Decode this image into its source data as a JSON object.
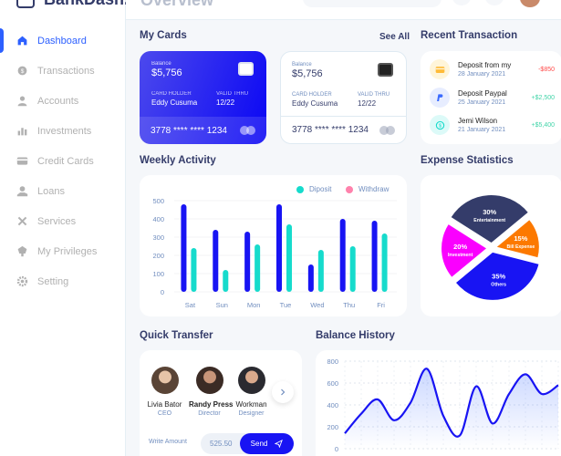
{
  "brand": {
    "name": "BankDash."
  },
  "header": {
    "title": "Overview"
  },
  "sidebar": {
    "items": [
      {
        "label": "Dashboard",
        "icon": "home-icon"
      },
      {
        "label": "Transactions",
        "icon": "transfer-icon"
      },
      {
        "label": "Accounts",
        "icon": "user-icon"
      },
      {
        "label": "Investments",
        "icon": "investment-icon"
      },
      {
        "label": "Credit Cards",
        "icon": "credit-card-icon"
      },
      {
        "label": "Loans",
        "icon": "loan-icon"
      },
      {
        "label": "Services",
        "icon": "service-icon"
      },
      {
        "label": "My Privileges",
        "icon": "privilege-icon"
      },
      {
        "label": "Setting",
        "icon": "gear-icon"
      }
    ]
  },
  "my_cards": {
    "title": "My Cards",
    "see_all": "See All",
    "cards": [
      {
        "balance_label": "Balance",
        "balance": "$5,756",
        "holder_label": "CARD HOLDER",
        "holder": "Eddy Cusuma",
        "valid_label": "VALID THRU",
        "valid": "12/22",
        "number": "3778 **** **** 1234"
      },
      {
        "balance_label": "Balance",
        "balance": "$5,756",
        "holder_label": "CARD HOLDER",
        "holder": "Eddy Cusuma",
        "valid_label": "VALID THRU",
        "valid": "12/22",
        "number": "3778 **** **** 1234"
      }
    ]
  },
  "recent_transactions": {
    "title": "Recent Transaction",
    "items": [
      {
        "name": "Deposit from my",
        "date": "28 January 2021",
        "amount": "-$850",
        "icon": "card-icon"
      },
      {
        "name": "Deposit Paypal",
        "date": "25 January 2021",
        "amount": "+$2,500",
        "icon": "paypal-icon"
      },
      {
        "name": "Jemi Wilson",
        "date": "21 January 2021",
        "amount": "+$5,400",
        "icon": "dollar-icon"
      }
    ]
  },
  "weekly_activity": {
    "title": "Weekly Activity",
    "legend_deposit": "Diposit",
    "legend_withdraw": "Withdraw"
  },
  "expense_statistics": {
    "title": "Expense Statistics",
    "slices": [
      {
        "percent": "30%",
        "label": "Entertainment"
      },
      {
        "percent": "15%",
        "label": "Bill Expense"
      },
      {
        "percent": "35%",
        "label": "Others"
      },
      {
        "percent": "20%",
        "label": "Investment"
      }
    ]
  },
  "quick_transfer": {
    "title": "Quick Transfer",
    "people": [
      {
        "name": "Livia Bator",
        "role": "CEO"
      },
      {
        "name": "Randy Press",
        "role": "Director"
      },
      {
        "name": "Workman",
        "role": "Designer"
      }
    ],
    "amount_label": "Write Amount",
    "amount": "525.50",
    "send_label": "Send"
  },
  "balance_history": {
    "title": "Balance History"
  },
  "colors": {
    "accent": "#1814f3",
    "deposit": "#16dbcc",
    "withdraw": "#ff82ac",
    "bar_blue": "#1814f3"
  },
  "chart_data": [
    {
      "type": "bar",
      "title": "Weekly Activity",
      "categories": [
        "Sat",
        "Sun",
        "Mon",
        "Tue",
        "Wed",
        "Thu",
        "Fri"
      ],
      "series": [
        {
          "name": "Withdraw",
          "values": [
            480,
            340,
            330,
            480,
            150,
            400,
            390
          ]
        },
        {
          "name": "Diposit",
          "values": [
            240,
            120,
            260,
            370,
            230,
            250,
            320
          ]
        }
      ],
      "yticks": [
        0,
        100,
        200,
        300,
        400,
        500
      ],
      "ylim": [
        0,
        500
      ]
    },
    {
      "type": "pie",
      "title": "Expense Statistics",
      "labels": [
        "Entertainment",
        "Bill Expense",
        "Others",
        "Investment"
      ],
      "values": [
        30,
        15,
        35,
        20
      ]
    },
    {
      "type": "area",
      "title": "Balance History",
      "x": [
        0,
        1,
        2,
        3,
        4,
        5,
        6,
        7,
        8,
        9,
        10,
        11,
        12,
        13
      ],
      "values": [
        140,
        320,
        450,
        260,
        420,
        730,
        300,
        120,
        570,
        230,
        500,
        680,
        500,
        580
      ],
      "yticks": [
        0,
        200,
        400,
        600,
        800
      ],
      "ylim": [
        0,
        800
      ]
    }
  ]
}
